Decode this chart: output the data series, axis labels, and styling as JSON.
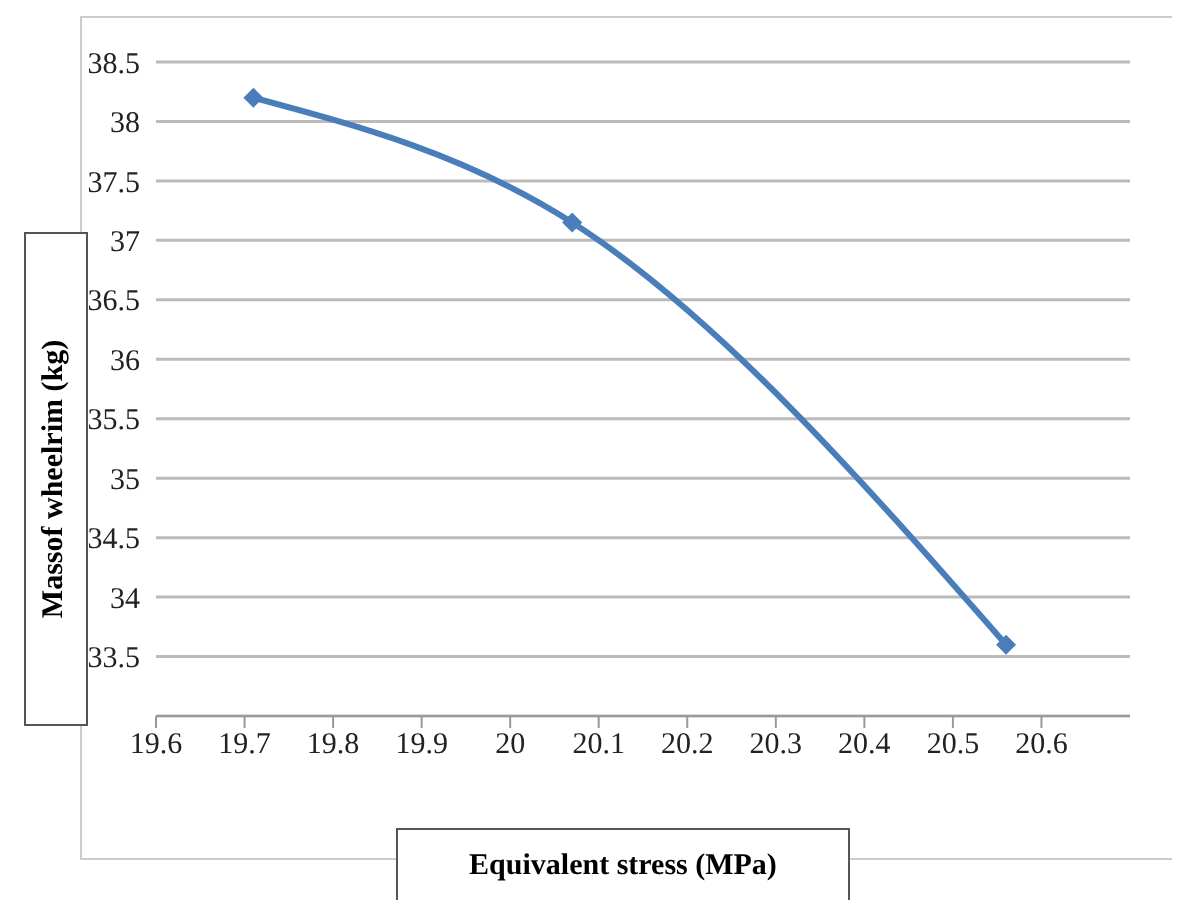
{
  "chart_data": {
    "type": "line",
    "xlabel": "Equivalent stress (MPa)",
    "ylabel": "Massof wheelrim (kg)",
    "x": [
      19.71,
      20.07,
      20.56
    ],
    "series": [
      {
        "color": "#4a7ebb",
        "values": [
          38.2,
          37.15,
          33.6
        ]
      }
    ],
    "xlim": [
      19.6,
      20.7
    ],
    "xticks": [
      19.6,
      19.7,
      19.8,
      19.9,
      20,
      20.1,
      20.2,
      20.3,
      20.4,
      20.5,
      20.6
    ],
    "ylim": [
      33,
      38.5
    ],
    "yticks": [
      {
        "value": 33,
        "label": null
      },
      33.5,
      34,
      34.5,
      35,
      35.5,
      36,
      36.5,
      37,
      37.5,
      38,
      38.5
    ],
    "grid": "y",
    "marker": "diamond",
    "legend": false
  }
}
